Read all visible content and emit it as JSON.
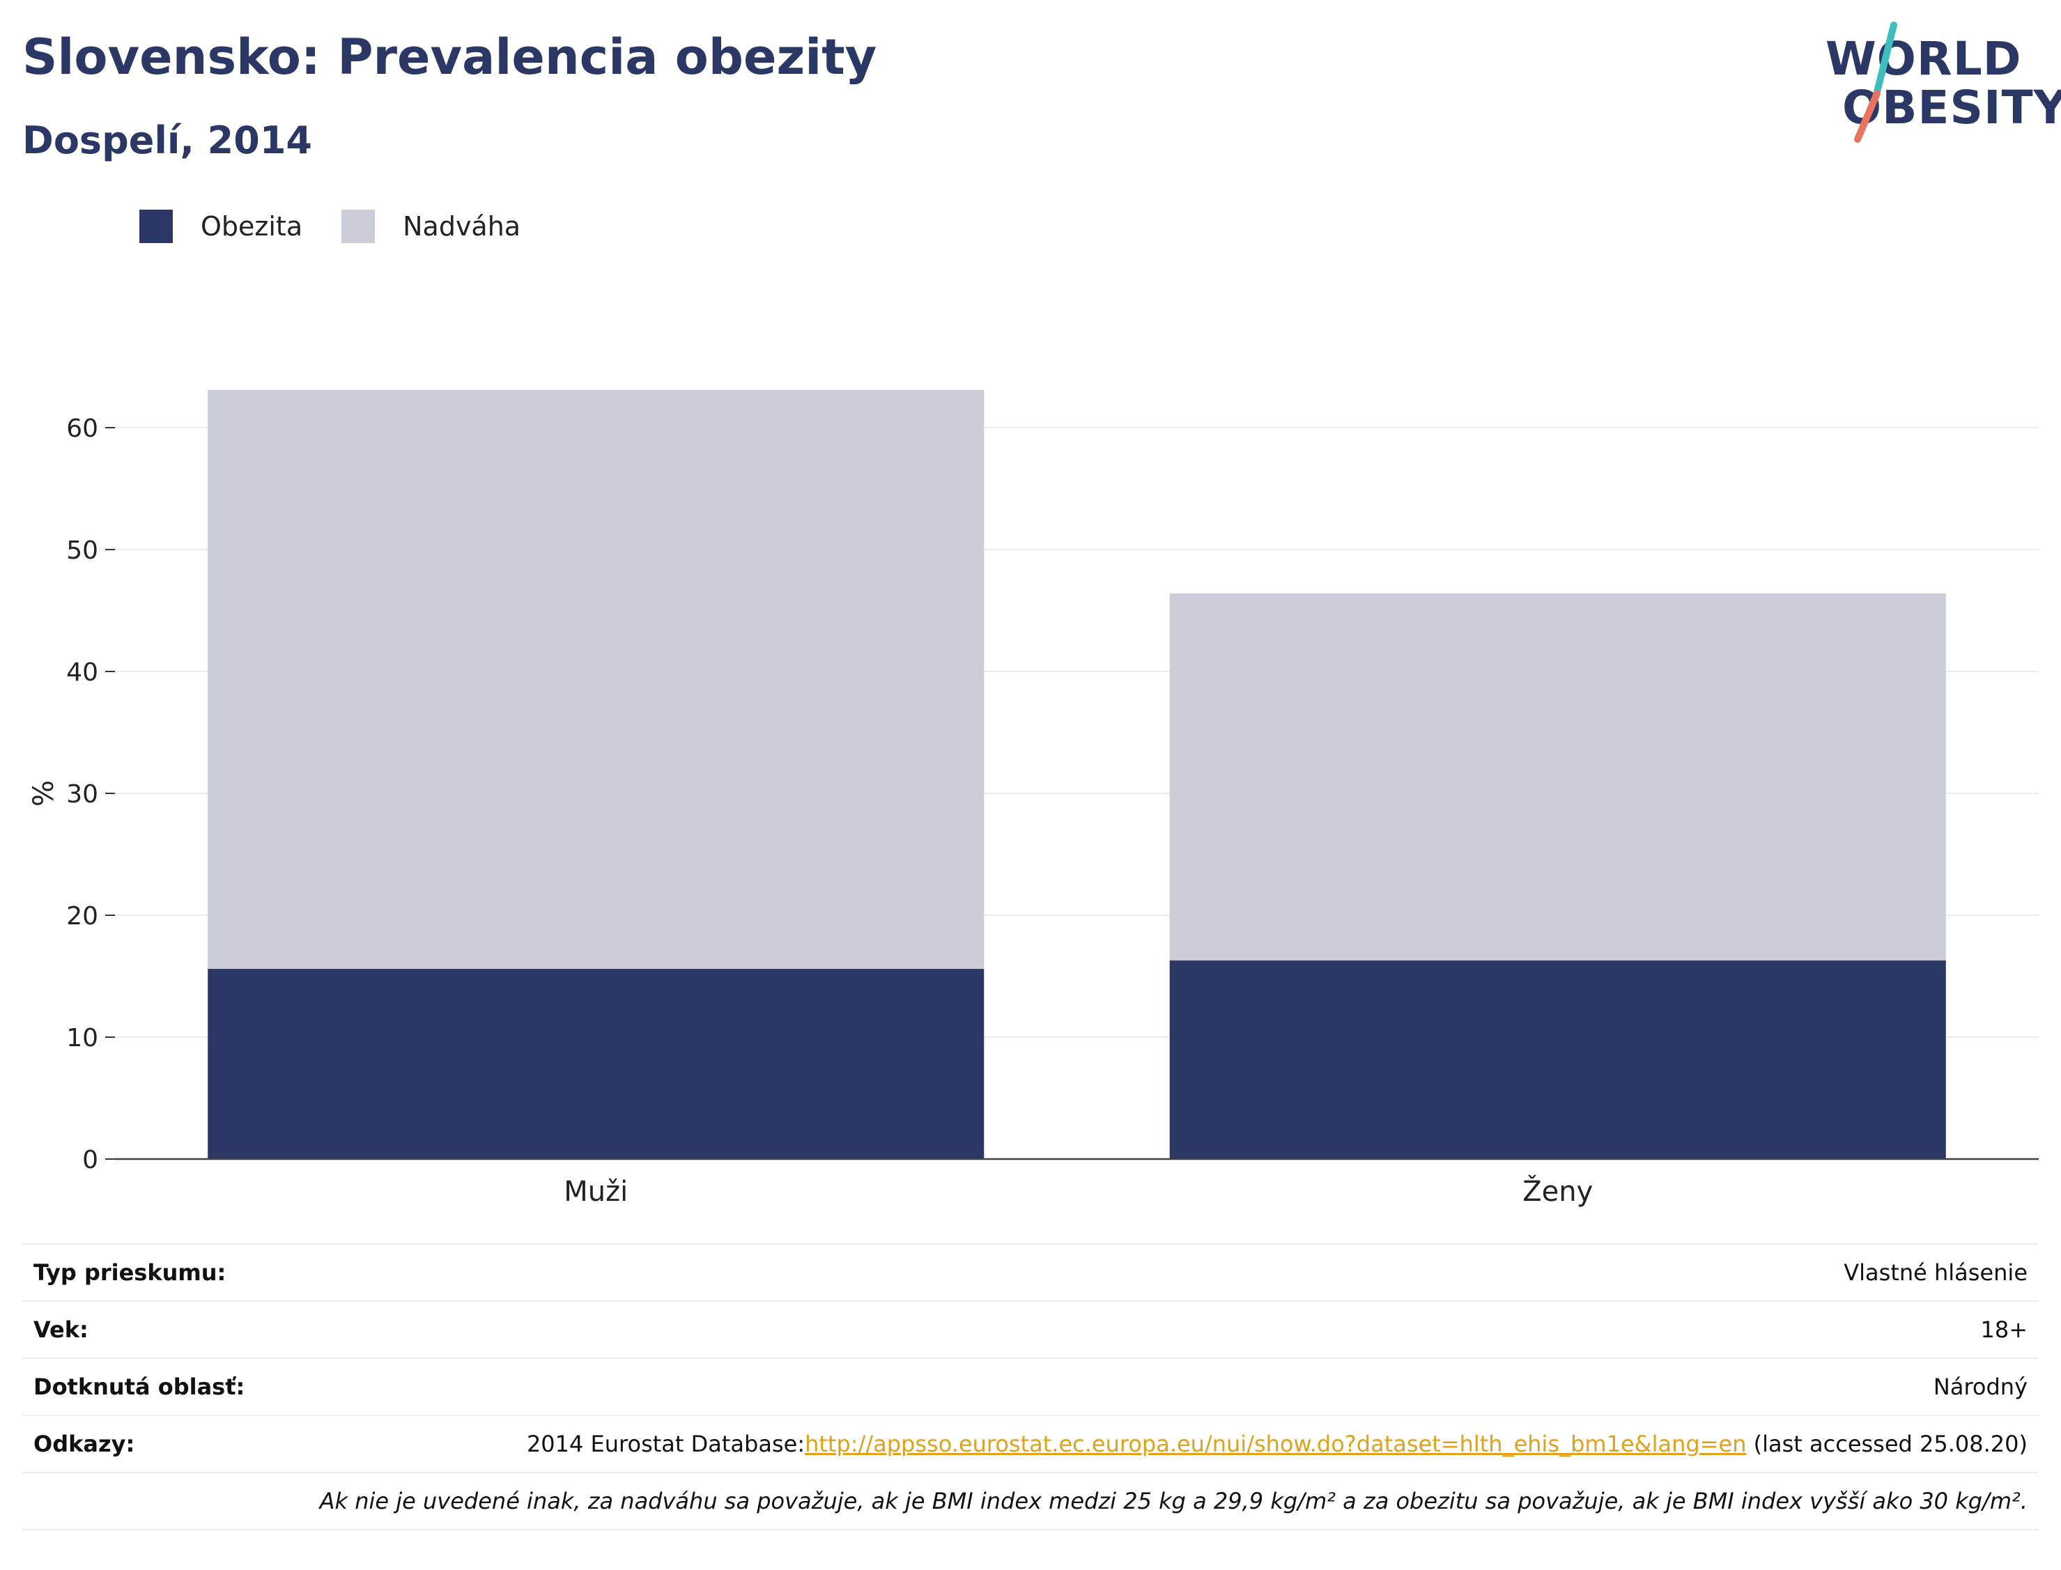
{
  "header": {
    "title": "Slovensko: Prevalencia obezity",
    "subtitle": "Dospelí, 2014"
  },
  "logo": {
    "line1": "WORLD",
    "line2": "OBESITY",
    "colors": {
      "text": "#2b3765",
      "slash_top": "#3dbfbf",
      "slash_bottom": "#e8735f"
    }
  },
  "legend": {
    "items": [
      {
        "label": "Obezita",
        "color": "#2b3765"
      },
      {
        "label": "Nadváha",
        "color": "#cbcdd9"
      }
    ]
  },
  "chart_data": {
    "type": "bar",
    "stacked": true,
    "categories": [
      "Muži",
      "Ženy"
    ],
    "series": [
      {
        "name": "Obezita",
        "color": "#2b3765",
        "values": [
          15.6,
          16.3
        ]
      },
      {
        "name": "Nadváha",
        "color": "#cbcdd9",
        "values": [
          47.5,
          30.1
        ]
      }
    ],
    "ylabel": "%",
    "ylim": [
      0,
      63.1
    ],
    "yticks": [
      0,
      10,
      20,
      30,
      40,
      50,
      60
    ],
    "grid": true,
    "legend_position": "top-left"
  },
  "info": {
    "rows": [
      {
        "key": "Typ prieskumu:",
        "value": "Vlastné hlásenie"
      },
      {
        "key": "Vek:",
        "value": "18+"
      },
      {
        "key": "Dotknutá oblasť:",
        "value": "Národný"
      }
    ],
    "references": {
      "key": "Odkazy:",
      "prefix": "2014 Eurostat Database:",
      "link": "http://appsso.eurostat.ec.europa.eu/nui/show.do?dataset=hlth_ehis_bm1e&lang=en",
      "suffix": " (last accessed 25.08.20)"
    },
    "note": "Ak nie je uvedené inak, za nadváhu sa považuje, ak je BMI index medzi 25 kg a 29,9 kg/m² a za obezitu sa považuje, ak je BMI index vyšší ako 30 kg/m²."
  }
}
